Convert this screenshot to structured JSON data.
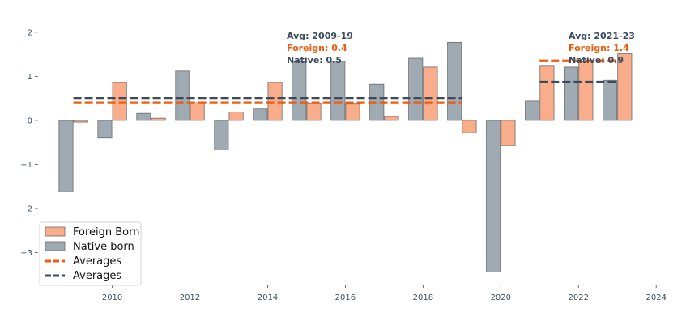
{
  "chart_data": {
    "type": "bar",
    "title": "",
    "xlabel": "",
    "ylabel": "",
    "x": [
      2009,
      2010,
      2011,
      2012,
      2013,
      2014,
      2015,
      2016,
      2017,
      2018,
      2019,
      2020,
      2021,
      2022,
      2023
    ],
    "xlim": [
      2008.3,
      2024.1
    ],
    "ylim": [
      -3.65,
      2.4
    ],
    "x_ticks": [
      "2010",
      "2012",
      "2014",
      "2016",
      "2018",
      "2020",
      "2022",
      "2024"
    ],
    "y_ticks": [
      "2",
      "1",
      "0",
      "−1",
      "−2",
      "−3"
    ],
    "grid": false,
    "legend_position": "lower-left",
    "colors": {
      "foreign": "#f9ad8a",
      "native": "#a0aab2",
      "foreign_avg": "#ef5b0c",
      "native_avg": "#3a4b5c",
      "bar_edge": "#6b6b6b"
    },
    "series": [
      {
        "name": "Foreign Born",
        "values": [
          -0.04,
          0.86,
          0.05,
          0.4,
          0.19,
          0.86,
          0.38,
          0.37,
          0.09,
          1.21,
          -0.28,
          -0.57,
          1.23,
          1.33,
          1.51
        ]
      },
      {
        "name": "Native born",
        "values": [
          -1.62,
          -0.4,
          0.16,
          1.12,
          -0.67,
          0.26,
          1.33,
          1.34,
          0.82,
          1.41,
          1.77,
          -3.44,
          0.44,
          1.21,
          0.91
        ]
      }
    ],
    "averages": [
      {
        "series": "Foreign Born",
        "from": 2009,
        "to": 2019,
        "value": 0.4
      },
      {
        "series": "Native born",
        "from": 2009,
        "to": 2019,
        "value": 0.5
      },
      {
        "series": "Foreign Born",
        "from": 2021,
        "to": 2023,
        "value": 1.35
      },
      {
        "series": "Native born",
        "from": 2021,
        "to": 2023,
        "value": 0.87
      }
    ],
    "annotations": [
      {
        "title": "Avg: 2009-19",
        "foreign": "Foreign: 0.4",
        "native": "Native: 0.5"
      },
      {
        "title": "Avg: 2021-23",
        "foreign": "Foreign: 1.4",
        "native": "Native: 0.9"
      }
    ],
    "legend": [
      {
        "label": "Foreign Born",
        "kind": "bar",
        "color": "foreign"
      },
      {
        "label": "Native born",
        "kind": "bar",
        "color": "native"
      },
      {
        "label": "Averages",
        "kind": "dash",
        "color": "foreign_avg"
      },
      {
        "label": "Averages",
        "kind": "dash",
        "color": "native_avg"
      }
    ]
  }
}
